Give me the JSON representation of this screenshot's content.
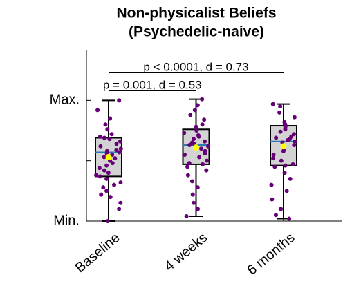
{
  "chart_data": {
    "type": "box",
    "title": [
      "Non-physicalist Beliefs",
      "(Psychedelic-naive)"
    ],
    "categories": [
      "Baseline",
      "4 weeks",
      "6 months"
    ],
    "boxes": [
      {
        "min": 0.0,
        "q1": 0.37,
        "median": 0.57,
        "q3": 0.69,
        "max": 1.0,
        "mean": 0.53,
        "points": [
          1.0,
          0.92,
          0.85,
          0.8,
          0.76,
          0.72,
          0.7,
          0.69,
          0.68,
          0.66,
          0.64,
          0.62,
          0.6,
          0.59,
          0.58,
          0.57,
          0.56,
          0.55,
          0.53,
          0.52,
          0.5,
          0.48,
          0.46,
          0.44,
          0.42,
          0.4,
          0.38,
          0.37,
          0.35,
          0.32,
          0.3,
          0.28,
          0.25,
          0.22,
          0.2,
          0.15,
          0.1,
          0.0
        ]
      },
      {
        "min": 0.04,
        "q1": 0.47,
        "median": 0.63,
        "q3": 0.76,
        "max": 1.01,
        "mean": 0.61,
        "points": [
          1.01,
          0.96,
          0.92,
          0.88,
          0.84,
          0.8,
          0.78,
          0.76,
          0.75,
          0.73,
          0.71,
          0.7,
          0.68,
          0.66,
          0.65,
          0.64,
          0.63,
          0.62,
          0.6,
          0.58,
          0.56,
          0.55,
          0.53,
          0.5,
          0.48,
          0.47,
          0.45,
          0.42,
          0.38,
          0.33,
          0.28,
          0.22,
          0.15,
          0.1,
          0.04
        ]
      },
      {
        "min": 0.02,
        "q1": 0.46,
        "median": 0.66,
        "q3": 0.79,
        "max": 0.97,
        "mean": 0.62,
        "points": [
          0.97,
          0.95,
          0.9,
          0.86,
          0.82,
          0.8,
          0.79,
          0.78,
          0.76,
          0.74,
          0.72,
          0.7,
          0.69,
          0.68,
          0.67,
          0.66,
          0.65,
          0.63,
          0.61,
          0.6,
          0.58,
          0.55,
          0.52,
          0.5,
          0.47,
          0.46,
          0.45,
          0.4,
          0.35,
          0.3,
          0.25,
          0.18,
          0.1,
          0.05,
          0.02
        ]
      }
    ],
    "box_color": "#d3d3d3",
    "median_color": "#2a7ab8",
    "point_color": "#660077",
    "mean_color": "#ffff00",
    "ylim": [
      0,
      1.42
    ],
    "yticks": [
      {
        "value": 0,
        "label": "Min."
      },
      {
        "value": 1,
        "label": "Max."
      }
    ],
    "yminor_ticks": [
      0.5
    ],
    "annotations": [
      "p < 0.0001, d = 0.73",
      "p = 0.001, d = 0.53"
    ]
  }
}
